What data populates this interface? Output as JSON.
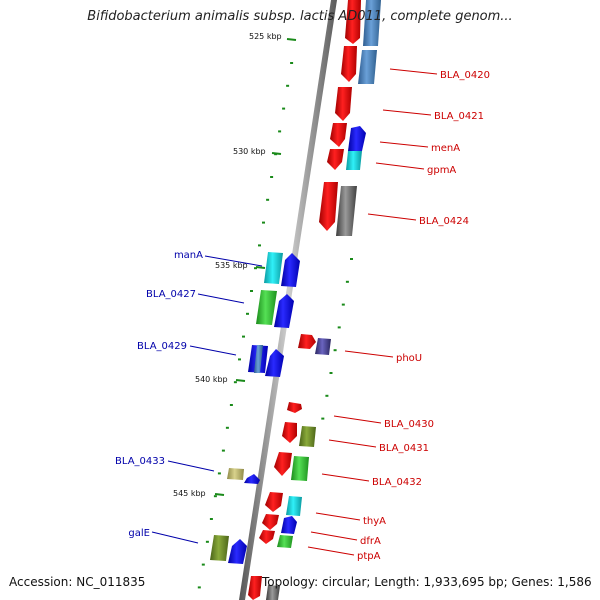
{
  "title": "Bifidobacterium animalis subsp. lactis AD011, complete genom...",
  "footer": {
    "accession": "Accession: NC_011835",
    "topology": "Topology: circular; Length: 1,933,695 bp; Genes: 1,586"
  },
  "colors": {
    "red": "#ff0000",
    "blue": "#0000ff",
    "steel_blue": "#4f86c0",
    "cyan": "#10d0d8",
    "green": "#33cc33",
    "olive": "#6b8e23",
    "khaki": "#bdb76b",
    "gray": "#666666",
    "slate": "#403c8c",
    "backbone": "#777777",
    "tick": "#1a8a1a",
    "label_red": "#cc0000",
    "label_blue": "#0000aa"
  },
  "ticks": [
    {
      "label": "525 kbp"
    },
    {
      "label": "530 kbp"
    },
    {
      "label": "535 kbp"
    },
    {
      "label": "540 kbp"
    },
    {
      "label": "545 kbp"
    }
  ],
  "genes_right": [
    {
      "label": "BLA_0420"
    },
    {
      "label": "BLA_0421"
    },
    {
      "label": "menA"
    },
    {
      "label": "gpmA"
    },
    {
      "label": "BLA_0424"
    },
    {
      "label": "phoU"
    },
    {
      "label": "BLA_0430"
    },
    {
      "label": "BLA_0431"
    },
    {
      "label": "BLA_0432"
    },
    {
      "label": "thyA"
    },
    {
      "label": "dfrA"
    },
    {
      "label": "ptpA"
    }
  ],
  "genes_left": [
    {
      "label": "manA"
    },
    {
      "label": "BLA_0427"
    },
    {
      "label": "BLA_0429"
    },
    {
      "label": "BLA_0433"
    },
    {
      "label": "galE"
    }
  ]
}
